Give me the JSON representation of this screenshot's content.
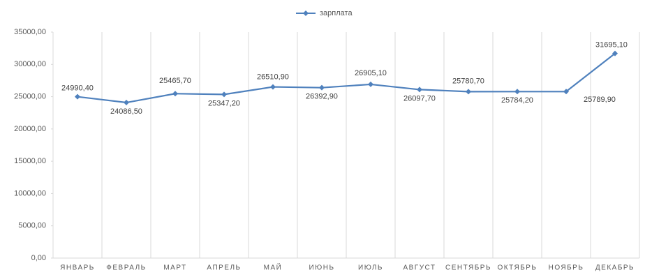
{
  "chart_data": {
    "type": "line",
    "categories": [
      "ЯНВАРЬ",
      "ФЕВРАЛЬ",
      "МАРТ",
      "АПРЕЛЬ",
      "МАЙ",
      "ИЮНЬ",
      "ИЮЛЬ",
      "АВГУСТ",
      "СЕНТЯБРЬ",
      "ОКТЯБРЬ",
      "НОЯБРЬ",
      "ДЕКАБРЬ"
    ],
    "series": [
      {
        "name": "зарплата",
        "color": "#4f81bd",
        "values": [
          24990.4,
          24086.5,
          25465.7,
          25347.2,
          26510.9,
          26392.9,
          26905.1,
          26097.7,
          25780.7,
          25784.2,
          25789.9,
          31695.1
        ],
        "value_labels": [
          "24990,40",
          "24086,50",
          "25465,70",
          "25347,20",
          "26510,90",
          "26392,90",
          "26905,10",
          "26097,70",
          "25780,70",
          "25784,20",
          "25789,90",
          "31695,10"
        ]
      }
    ],
    "ylim": [
      0,
      35000
    ],
    "yticks": [
      {
        "value": 0,
        "label": "0,00"
      },
      {
        "value": 5000,
        "label": "5000,00"
      },
      {
        "value": 10000,
        "label": "10000,00"
      },
      {
        "value": 15000,
        "label": "15000,00"
      },
      {
        "value": 20000,
        "label": "20000,00"
      },
      {
        "value": 25000,
        "label": "25000,00"
      },
      {
        "value": 30000,
        "label": "30000,00"
      },
      {
        "value": 35000,
        "label": "35000,00"
      }
    ],
    "legend": "top"
  }
}
